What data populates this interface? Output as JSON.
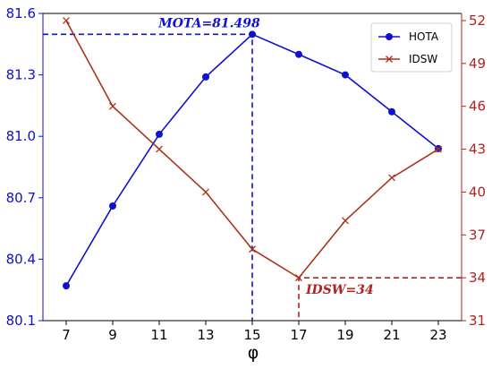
{
  "chart_data": {
    "type": "line",
    "xlabel": "φ",
    "x": [
      7,
      9,
      11,
      13,
      15,
      17,
      19,
      21,
      23
    ],
    "xticks": [
      "7",
      "9",
      "11",
      "13",
      "15",
      "17",
      "19",
      "21",
      "23"
    ],
    "xlim": [
      6,
      24
    ],
    "y_left": {
      "lim": [
        80.1,
        81.6
      ],
      "ticks": [
        "80.1",
        "80.4",
        "80.7",
        "81.0",
        "81.3",
        "81.6"
      ],
      "color": "#1010d0"
    },
    "y_right": {
      "lim": [
        31,
        52.5
      ],
      "ticks": [
        "31",
        "34",
        "37",
        "40",
        "43",
        "46",
        "49",
        "52"
      ],
      "color": "#b22222"
    },
    "series": [
      {
        "name": "HOTA",
        "axis": "left",
        "color": "#1010d0",
        "marker": "circle",
        "values": [
          80.27,
          80.66,
          81.01,
          81.29,
          81.498,
          81.4,
          81.3,
          81.12,
          80.94
        ]
      },
      {
        "name": "IDSW",
        "axis": "right",
        "color": "#a8341a",
        "marker": "x",
        "values": [
          52,
          46,
          43,
          40,
          36,
          34,
          38,
          41,
          43
        ]
      }
    ],
    "annotations": [
      {
        "text": "MOTA=81.498",
        "x": 15,
        "y": 81.498,
        "axis": "left",
        "color": "#1010d0"
      },
      {
        "text": "IDSW=34",
        "x": 17,
        "y": 34,
        "axis": "right",
        "color": "#b22222"
      }
    ],
    "legend": {
      "placement": "top-right"
    },
    "grid": false
  }
}
